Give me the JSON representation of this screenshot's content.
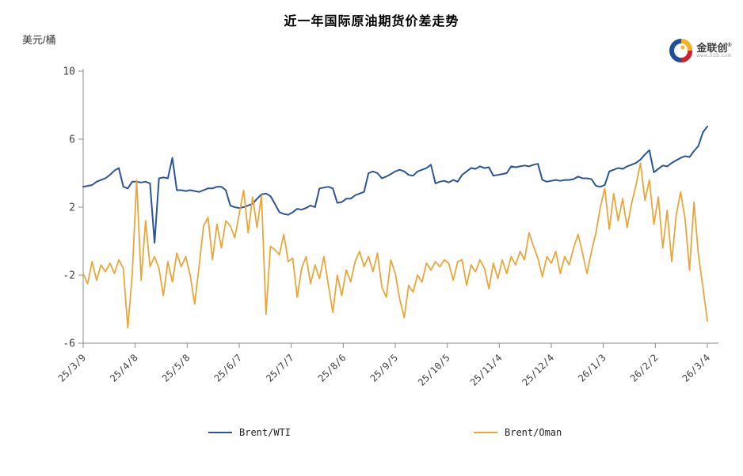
{
  "title": "近一年国际原油期货价差走势",
  "y_unit": "美元/桶",
  "logo": {
    "name": "金联创",
    "reg_mark": "®",
    "url": "www.315i.com"
  },
  "colors": {
    "brent_wti": "#2B5597",
    "brent_oman": "#EBA63B",
    "axis": "#8C8C8C",
    "text": "#404040"
  },
  "chart_data": {
    "type": "line",
    "title": "近一年国际原油期货价差走势",
    "xlabel": "",
    "ylabel": "美元/桶",
    "ylim": [
      -6,
      10
    ],
    "yticks": [
      10,
      6,
      2,
      -2,
      -6
    ],
    "xticklabels": [
      "25/3/9",
      "25/4/8",
      "25/5/8",
      "25/6/7",
      "25/7/7",
      "25/8/6",
      "25/9/5",
      "25/10/5",
      "25/11/4",
      "25/12/4",
      "26/1/3",
      "26/2/2",
      "26/3/4"
    ],
    "grid": false,
    "legend_position": "bottom",
    "series": [
      {
        "name": "Brent/WTI",
        "color": "#2B5597",
        "values": [
          3.2,
          3.25,
          3.3,
          3.5,
          3.6,
          3.7,
          3.9,
          4.15,
          4.3,
          3.2,
          3.1,
          3.5,
          3.5,
          3.45,
          3.5,
          3.4,
          -0.1,
          3.7,
          3.75,
          3.7,
          4.9,
          3.0,
          3.0,
          2.95,
          3.0,
          2.95,
          2.9,
          3.0,
          3.1,
          3.1,
          3.2,
          3.2,
          3.0,
          2.1,
          2.0,
          1.95,
          2.0,
          2.1,
          2.2,
          2.5,
          2.75,
          2.8,
          2.65,
          2.2,
          1.7,
          1.6,
          1.55,
          1.7,
          1.9,
          1.85,
          1.95,
          2.1,
          2.0,
          3.1,
          3.15,
          3.2,
          3.1,
          2.25,
          2.3,
          2.5,
          2.5,
          2.7,
          2.8,
          2.9,
          4.0,
          4.1,
          4.0,
          3.7,
          3.8,
          3.95,
          4.1,
          4.2,
          4.1,
          3.9,
          3.85,
          4.1,
          4.2,
          4.3,
          4.5,
          3.4,
          3.5,
          3.55,
          3.45,
          3.6,
          3.5,
          3.9,
          4.1,
          4.3,
          4.25,
          4.4,
          4.3,
          4.35,
          3.85,
          3.9,
          3.95,
          4.0,
          4.4,
          4.35,
          4.4,
          4.45,
          4.4,
          4.5,
          4.55,
          3.6,
          3.5,
          3.55,
          3.6,
          3.55,
          3.6,
          3.6,
          3.65,
          3.8,
          3.7,
          3.7,
          3.65,
          3.25,
          3.2,
          3.3,
          4.1,
          4.2,
          4.3,
          4.25,
          4.4,
          4.5,
          4.6,
          4.8,
          5.1,
          5.35,
          4.05,
          4.25,
          4.45,
          4.4,
          4.6,
          4.75,
          4.9,
          5.0,
          4.95,
          5.3,
          5.6,
          6.4,
          6.75
        ]
      },
      {
        "name": "Brent/Oman",
        "color": "#EBA63B",
        "values": [
          -1.9,
          -2.5,
          -1.2,
          -2.3,
          -1.4,
          -1.8,
          -1.3,
          -1.9,
          -1.1,
          -1.6,
          -5.1,
          -2.0,
          3.6,
          -2.3,
          1.2,
          -1.5,
          -0.9,
          -1.6,
          -3.2,
          -1.2,
          -2.4,
          -0.7,
          -1.5,
          -0.9,
          -2.0,
          -3.7,
          -1.5,
          0.9,
          1.4,
          -1.1,
          1.0,
          -0.4,
          1.2,
          0.9,
          0.2,
          1.6,
          3.0,
          0.5,
          2.6,
          0.8,
          2.7,
          -4.3,
          -0.3,
          -0.5,
          -0.8,
          0.4,
          -1.2,
          -1.0,
          -3.3,
          -1.6,
          -0.9,
          -2.5,
          -1.4,
          -2.2,
          -0.9,
          -2.6,
          -4.2,
          -2.0,
          -3.2,
          -1.7,
          -2.4,
          -1.2,
          -0.6,
          -1.5,
          -0.9,
          -1.8,
          -0.7,
          -2.7,
          -3.3,
          -1.1,
          -1.9,
          -3.4,
          -4.5,
          -2.6,
          -3.0,
          -2.0,
          -2.4,
          -1.3,
          -1.7,
          -1.2,
          -1.5,
          -1.1,
          -1.3,
          -2.3,
          -1.2,
          -1.1,
          -2.6,
          -1.4,
          -1.8,
          -1.1,
          -1.6,
          -2.8,
          -1.3,
          -2.2,
          -1.1,
          -1.9,
          -0.9,
          -1.4,
          -0.6,
          -1.1,
          0.5,
          -0.3,
          -1.0,
          -2.1,
          -0.9,
          -1.3,
          -0.6,
          -1.9,
          -0.9,
          -1.4,
          -0.4,
          0.4,
          -0.7,
          -1.9,
          -0.6,
          0.5,
          2.0,
          3.1,
          0.7,
          2.8,
          1.2,
          2.5,
          0.8,
          2.2,
          3.3,
          4.6,
          2.4,
          3.6,
          1.0,
          2.6,
          -0.4,
          1.8,
          -1.2,
          1.5,
          2.9,
          1.3,
          -1.7,
          2.3,
          -0.8,
          -2.7,
          -4.7
        ]
      }
    ]
  }
}
